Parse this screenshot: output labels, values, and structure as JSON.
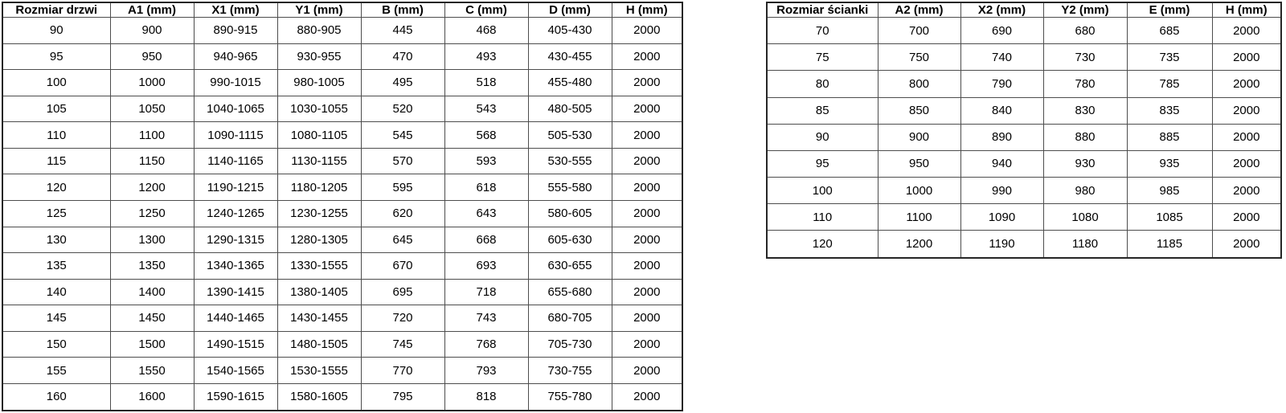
{
  "page": {
    "background_color": "#ffffff",
    "text_color": "#000000",
    "grid_border_color": "#4d4d4d",
    "outer_border_color": "#262626"
  },
  "door_table": {
    "headers": [
      "Rozmiar drzwi",
      "A1 (mm)",
      "X1 (mm)",
      "Y1 (mm)",
      "B (mm)",
      "C (mm)",
      "D (mm)",
      "H (mm)"
    ],
    "rows": [
      [
        "90",
        "900",
        "890-915",
        "880-905",
        "445",
        "468",
        "405-430",
        "2000"
      ],
      [
        "95",
        "950",
        "940-965",
        "930-955",
        "470",
        "493",
        "430-455",
        "2000"
      ],
      [
        "100",
        "1000",
        "990-1015",
        "980-1005",
        "495",
        "518",
        "455-480",
        "2000"
      ],
      [
        "105",
        "1050",
        "1040-1065",
        "1030-1055",
        "520",
        "543",
        "480-505",
        "2000"
      ],
      [
        "110",
        "1100",
        "1090-1115",
        "1080-1105",
        "545",
        "568",
        "505-530",
        "2000"
      ],
      [
        "115",
        "1150",
        "1140-1165",
        "1130-1155",
        "570",
        "593",
        "530-555",
        "2000"
      ],
      [
        "120",
        "1200",
        "1190-1215",
        "1180-1205",
        "595",
        "618",
        "555-580",
        "2000"
      ],
      [
        "125",
        "1250",
        "1240-1265",
        "1230-1255",
        "620",
        "643",
        "580-605",
        "2000"
      ],
      [
        "130",
        "1300",
        "1290-1315",
        "1280-1305",
        "645",
        "668",
        "605-630",
        "2000"
      ],
      [
        "135",
        "1350",
        "1340-1365",
        "1330-1555",
        "670",
        "693",
        "630-655",
        "2000"
      ],
      [
        "140",
        "1400",
        "1390-1415",
        "1380-1405",
        "695",
        "718",
        "655-680",
        "2000"
      ],
      [
        "145",
        "1450",
        "1440-1465",
        "1430-1455",
        "720",
        "743",
        "680-705",
        "2000"
      ],
      [
        "150",
        "1500",
        "1490-1515",
        "1480-1505",
        "745",
        "768",
        "705-730",
        "2000"
      ],
      [
        "155",
        "1550",
        "1540-1565",
        "1530-1555",
        "770",
        "793",
        "730-755",
        "2000"
      ],
      [
        "160",
        "1600",
        "1590-1615",
        "1580-1605",
        "795",
        "818",
        "755-780",
        "2000"
      ]
    ]
  },
  "wall_table": {
    "headers": [
      "Rozmiar ścianki",
      "A2 (mm)",
      "X2 (mm)",
      "Y2 (mm)",
      "E (mm)",
      "H (mm)"
    ],
    "rows": [
      [
        "70",
        "700",
        "690",
        "680",
        "685",
        "2000"
      ],
      [
        "75",
        "750",
        "740",
        "730",
        "735",
        "2000"
      ],
      [
        "80",
        "800",
        "790",
        "780",
        "785",
        "2000"
      ],
      [
        "85",
        "850",
        "840",
        "830",
        "835",
        "2000"
      ],
      [
        "90",
        "900",
        "890",
        "880",
        "885",
        "2000"
      ],
      [
        "95",
        "950",
        "940",
        "930",
        "935",
        "2000"
      ],
      [
        "100",
        "1000",
        "990",
        "980",
        "985",
        "2000"
      ],
      [
        "110",
        "1100",
        "1090",
        "1080",
        "1085",
        "2000"
      ],
      [
        "120",
        "1200",
        "1190",
        "1180",
        "1185",
        "2000"
      ]
    ]
  }
}
